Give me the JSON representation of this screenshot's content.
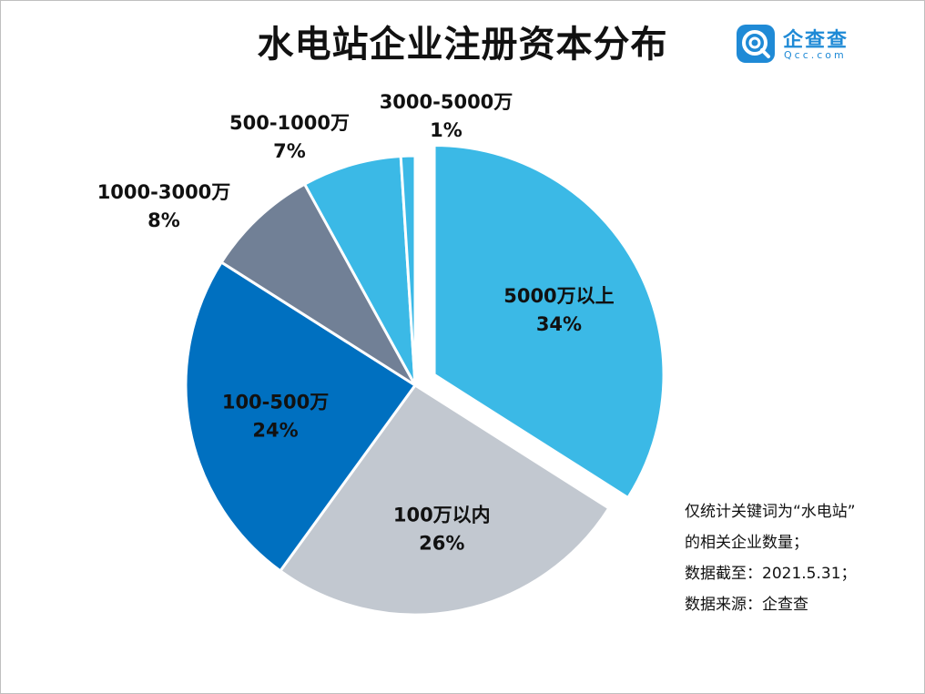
{
  "title": "水电站企业注册资本分布",
  "logo": {
    "name": "企查查",
    "domain": "Qcc.com"
  },
  "chart_data": {
    "type": "pie",
    "title": "水电站企业注册资本分布",
    "slices": [
      {
        "label": "5000万以上",
        "value": 34,
        "value_label": "34%",
        "color": "#3bb9e6",
        "exploded": true,
        "label_inside": true
      },
      {
        "label": "100万以内",
        "value": 26,
        "value_label": "26%",
        "color": "#c2c8d0",
        "exploded": false,
        "label_inside": true
      },
      {
        "label": "100-500万",
        "value": 24,
        "value_label": "24%",
        "color": "#0070c0",
        "exploded": false,
        "label_inside": true
      },
      {
        "label": "1000-3000万",
        "value": 8,
        "value_label": "8%",
        "color": "#718096",
        "exploded": false,
        "label_inside": false
      },
      {
        "label": "500-1000万",
        "value": 7,
        "value_label": "7%",
        "color": "#3bb9e6",
        "exploded": false,
        "label_inside": false
      },
      {
        "label": "3000-5000万",
        "value": 1,
        "value_label": "1%",
        "color": "#3bb9e6",
        "exploded": false,
        "label_inside": false
      }
    ]
  },
  "note": {
    "lines": [
      "仅统计关键词为“水电站”",
      "的相关企业数量；",
      "数据截至：2021.5.31；",
      "数据来源：企查查"
    ]
  }
}
